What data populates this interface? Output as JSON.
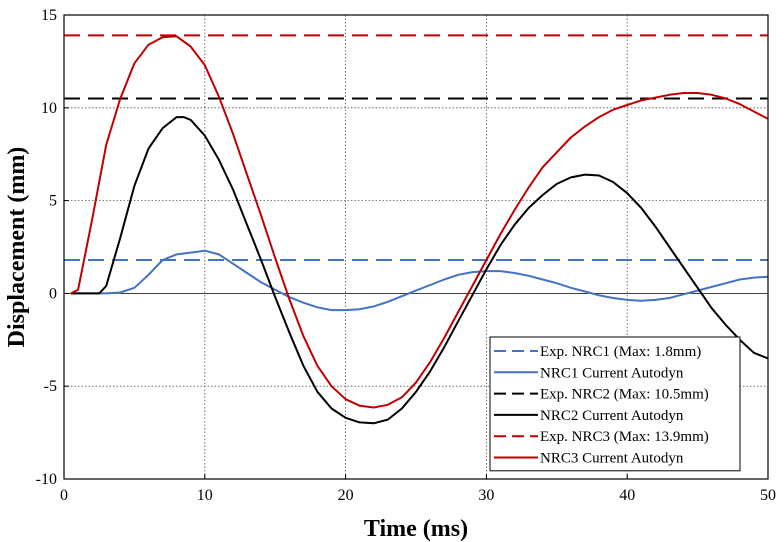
{
  "chart_data": {
    "type": "line",
    "xlabel": "Time (ms)",
    "ylabel": "Displacement (mm)",
    "xlim": [
      0,
      50
    ],
    "ylim": [
      -10,
      15
    ],
    "xticks": [
      0,
      10,
      20,
      30,
      40,
      50
    ],
    "yticks": [
      -10,
      -5,
      0,
      5,
      10,
      15
    ],
    "grid": true,
    "legend_position": "bottom-right",
    "series": [
      {
        "name": "Exp. NRC1 (Max: 1.8mm)",
        "color": "#4472C4",
        "style": "dashed",
        "x": [
          0,
          50
        ],
        "y": [
          1.8,
          1.8
        ]
      },
      {
        "name": "NRC1 Current Autodyn",
        "color": "#4472C4",
        "style": "solid",
        "x": [
          0.5,
          1,
          2,
          3,
          4,
          5,
          6,
          7,
          8,
          9,
          10,
          11,
          12,
          13,
          14,
          15,
          16,
          17,
          18,
          19,
          20,
          21,
          22,
          23,
          24,
          25,
          26,
          27,
          28,
          29,
          30,
          31,
          32,
          33,
          34,
          35,
          36,
          37,
          38,
          39,
          40,
          41,
          42,
          43,
          44,
          45,
          46,
          47,
          48,
          49,
          50
        ],
        "y": [
          0,
          0,
          0,
          0,
          0.05,
          0.3,
          1.0,
          1.8,
          2.1,
          2.2,
          2.3,
          2.1,
          1.6,
          1.1,
          0.6,
          0.2,
          -0.2,
          -0.5,
          -0.75,
          -0.9,
          -0.9,
          -0.85,
          -0.7,
          -0.45,
          -0.15,
          0.15,
          0.45,
          0.75,
          1.0,
          1.15,
          1.2,
          1.2,
          1.1,
          0.95,
          0.75,
          0.55,
          0.3,
          0.1,
          -0.1,
          -0.25,
          -0.35,
          -0.4,
          -0.35,
          -0.25,
          -0.05,
          0.15,
          0.35,
          0.55,
          0.75,
          0.85,
          0.9
        ]
      },
      {
        "name": "Exp. NRC2 (Max: 10.5mm)",
        "color": "#000000",
        "style": "dashed",
        "x": [
          0,
          50
        ],
        "y": [
          10.5,
          10.5
        ]
      },
      {
        "name": "NRC2 Current Autodyn",
        "color": "#000000",
        "style": "solid",
        "x": [
          0.5,
          1,
          2,
          2.5,
          3,
          4,
          5,
          6,
          7,
          8,
          8.5,
          9,
          10,
          11,
          12,
          13,
          14,
          15,
          16,
          17,
          18,
          19,
          20,
          21,
          22,
          23,
          24,
          25,
          26,
          27,
          28,
          29,
          30,
          31,
          32,
          33,
          34,
          35,
          36,
          37,
          38,
          39,
          40,
          41,
          42,
          43,
          44,
          45,
          46,
          47,
          48,
          49,
          50
        ],
        "y": [
          0,
          0,
          0,
          0,
          0.4,
          3.0,
          5.8,
          7.8,
          8.9,
          9.5,
          9.5,
          9.35,
          8.5,
          7.2,
          5.6,
          3.7,
          1.8,
          -0.2,
          -2.1,
          -3.9,
          -5.3,
          -6.2,
          -6.7,
          -6.95,
          -7.0,
          -6.8,
          -6.2,
          -5.3,
          -4.2,
          -2.9,
          -1.5,
          -0.1,
          1.3,
          2.6,
          3.7,
          4.6,
          5.3,
          5.9,
          6.25,
          6.4,
          6.35,
          6.0,
          5.4,
          4.6,
          3.6,
          2.5,
          1.4,
          0.3,
          -0.8,
          -1.7,
          -2.5,
          -3.2,
          -3.5
        ]
      },
      {
        "name": "Exp. NRC3 (Max: 13.9mm)",
        "color": "#C00000",
        "style": "dashed",
        "x": [
          0,
          50
        ],
        "y": [
          13.9,
          13.9
        ]
      },
      {
        "name": "NRC3 Current Autodyn",
        "color": "#C00000",
        "style": "solid",
        "x": [
          0.5,
          1,
          2,
          3,
          4,
          5,
          6,
          7,
          8,
          9,
          10,
          11,
          12,
          13,
          14,
          15,
          16,
          17,
          18,
          19,
          20,
          21,
          22,
          23,
          24,
          25,
          26,
          27,
          28,
          29,
          30,
          31,
          32,
          33,
          34,
          35,
          36,
          37,
          38,
          39,
          40,
          41,
          42,
          43,
          44,
          45,
          46,
          47,
          48,
          49,
          50
        ],
        "y": [
          0,
          0.2,
          4.0,
          8.0,
          10.5,
          12.4,
          13.4,
          13.8,
          13.85,
          13.3,
          12.3,
          10.6,
          8.6,
          6.4,
          4.2,
          1.9,
          -0.3,
          -2.3,
          -3.9,
          -5.0,
          -5.7,
          -6.05,
          -6.15,
          -6.0,
          -5.6,
          -4.8,
          -3.7,
          -2.4,
          -1.0,
          0.4,
          1.8,
          3.2,
          4.5,
          5.7,
          6.8,
          7.6,
          8.4,
          9.0,
          9.5,
          9.9,
          10.15,
          10.4,
          10.55,
          10.7,
          10.8,
          10.8,
          10.7,
          10.5,
          10.2,
          9.8,
          9.4
        ]
      }
    ]
  }
}
